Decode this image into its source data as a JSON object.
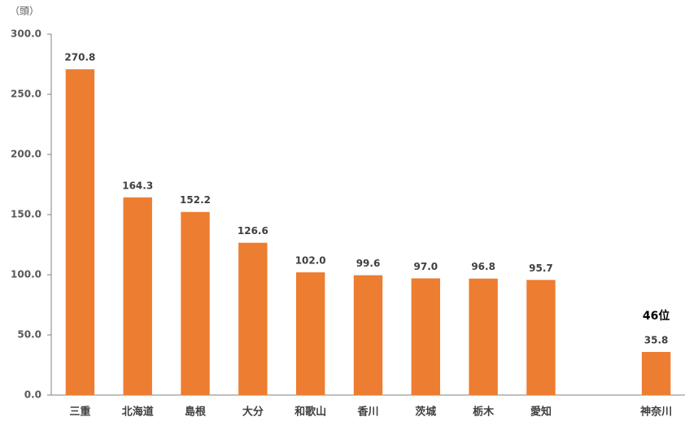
{
  "chart_data": {
    "type": "bar",
    "y_axis_label": "（頭）",
    "categories": [
      "三重",
      "北海道",
      "島根",
      "大分",
      "和歌山",
      "香川",
      "茨城",
      "栃木",
      "愛知",
      null,
      "神奈川"
    ],
    "values": [
      270.8,
      164.3,
      152.2,
      126.6,
      102.0,
      99.6,
      97.0,
      96.8,
      95.7,
      null,
      35.8
    ],
    "value_labels": [
      "270.8",
      "164.3",
      "152.2",
      "126.6",
      "102.0",
      "99.6",
      "97.0",
      "96.8",
      "95.7",
      null,
      "35.8"
    ],
    "annotation": "46位",
    "color": "#ed7d31",
    "ylim": [
      0,
      300
    ],
    "yticks": [
      {
        "value": 0,
        "label": "0.0"
      },
      {
        "value": 50,
        "label": "50.0"
      },
      {
        "value": 100,
        "label": "100.0"
      },
      {
        "value": 150,
        "label": "150.0"
      },
      {
        "value": 200,
        "label": "200.0"
      },
      {
        "value": 250,
        "label": "250.0"
      },
      {
        "value": 300,
        "label": "300.0"
      }
    ],
    "grid": false
  }
}
